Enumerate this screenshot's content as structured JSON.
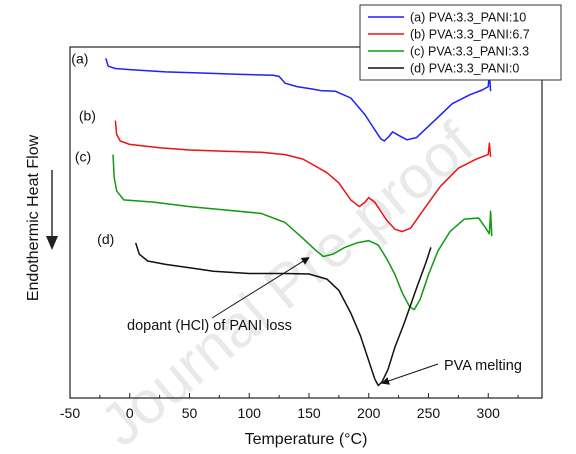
{
  "chart_data": {
    "type": "line",
    "xlabel": "Temperature (°C)",
    "ylabel": "Endothermic Heat Flow",
    "xlim": [
      -50,
      345
    ],
    "x_ticks": [
      "-50",
      "0",
      "50",
      "100",
      "150",
      "200",
      "250",
      "300"
    ],
    "y_ticks_shown": false,
    "legend": {
      "position": "top-right",
      "framed": true
    },
    "watermark": "Journal Pre-proof",
    "series": [
      {
        "name": "(a) PVA:3.3_PANI:10",
        "tag": "(a)",
        "color": "#1f1fff",
        "points": [
          [
            -20,
            0.95
          ],
          [
            -18,
            0.88
          ],
          [
            -12,
            0.86
          ],
          [
            0,
            0.85
          ],
          [
            30,
            0.83
          ],
          [
            60,
            0.82
          ],
          [
            90,
            0.81
          ],
          [
            120,
            0.8
          ],
          [
            125,
            0.79
          ],
          [
            130,
            0.73
          ],
          [
            140,
            0.7
          ],
          [
            152,
            0.68
          ],
          [
            160,
            0.665
          ],
          [
            172,
            0.66
          ],
          [
            185,
            0.6
          ],
          [
            197,
            0.45
          ],
          [
            205,
            0.32
          ],
          [
            210,
            0.24
          ],
          [
            213,
            0.22
          ],
          [
            217,
            0.26
          ],
          [
            220,
            0.3
          ],
          [
            225,
            0.27
          ],
          [
            232,
            0.23
          ],
          [
            240,
            0.25
          ],
          [
            255,
            0.4
          ],
          [
            270,
            0.55
          ],
          [
            285,
            0.63
          ],
          [
            295,
            0.67
          ],
          [
            300,
            0.7
          ],
          [
            301,
            0.82
          ],
          [
            302,
            0.66
          ]
        ]
      },
      {
        "name": "(b) PVA:3.3_PANI:6.7",
        "tag": "(b)",
        "color": "#ee1111",
        "points": [
          [
            -12,
            0.4
          ],
          [
            -11,
            0.28
          ],
          [
            -8,
            0.22
          ],
          [
            0,
            0.19
          ],
          [
            25,
            0.16
          ],
          [
            50,
            0.14
          ],
          [
            80,
            0.13
          ],
          [
            110,
            0.12
          ],
          [
            130,
            0.1
          ],
          [
            145,
            0.06
          ],
          [
            155,
            0.0
          ],
          [
            165,
            -0.06
          ],
          [
            175,
            -0.15
          ],
          [
            185,
            -0.3
          ],
          [
            192,
            -0.36
          ],
          [
            197,
            -0.32
          ],
          [
            200,
            -0.28
          ],
          [
            205,
            -0.32
          ],
          [
            215,
            -0.48
          ],
          [
            222,
            -0.56
          ],
          [
            228,
            -0.58
          ],
          [
            235,
            -0.55
          ],
          [
            245,
            -0.4
          ],
          [
            260,
            -0.18
          ],
          [
            275,
            -0.02
          ],
          [
            290,
            0.06
          ],
          [
            300,
            0.1
          ],
          [
            301,
            0.2
          ],
          [
            302,
            0.08
          ]
        ]
      },
      {
        "name": "(c) PVA:3.3_PANI:3.3",
        "tag": "(c)",
        "color": "#119911",
        "points": [
          [
            -14,
            0.1
          ],
          [
            -13,
            -0.1
          ],
          [
            -11,
            -0.22
          ],
          [
            -5,
            -0.3
          ],
          [
            20,
            -0.32
          ],
          [
            50,
            -0.36
          ],
          [
            80,
            -0.39
          ],
          [
            110,
            -0.42
          ],
          [
            130,
            -0.5
          ],
          [
            145,
            -0.64
          ],
          [
            155,
            -0.74
          ],
          [
            162,
            -0.8
          ],
          [
            170,
            -0.78
          ],
          [
            180,
            -0.72
          ],
          [
            190,
            -0.68
          ],
          [
            200,
            -0.66
          ],
          [
            208,
            -0.7
          ],
          [
            215,
            -0.82
          ],
          [
            222,
            -0.96
          ],
          [
            228,
            -1.12
          ],
          [
            234,
            -1.24
          ],
          [
            238,
            -1.27
          ],
          [
            243,
            -1.18
          ],
          [
            250,
            -0.96
          ],
          [
            258,
            -0.75
          ],
          [
            268,
            -0.58
          ],
          [
            280,
            -0.47
          ],
          [
            292,
            -0.46
          ],
          [
            298,
            -0.55
          ],
          [
            301,
            -0.6
          ],
          [
            302,
            -0.4
          ],
          [
            303,
            -0.62
          ]
        ]
      },
      {
        "name": "(d) PVA:3.3_PANI:0",
        "tag": "(d)",
        "color": "#111111",
        "points": [
          [
            5,
            -0.68
          ],
          [
            8,
            -0.78
          ],
          [
            15,
            -0.84
          ],
          [
            30,
            -0.87
          ],
          [
            50,
            -0.9
          ],
          [
            70,
            -0.93
          ],
          [
            100,
            -0.95
          ],
          [
            130,
            -0.95
          ],
          [
            150,
            -0.955
          ],
          [
            165,
            -1.0
          ],
          [
            175,
            -1.1
          ],
          [
            185,
            -1.3
          ],
          [
            193,
            -1.5
          ],
          [
            200,
            -1.72
          ],
          [
            205,
            -1.88
          ],
          [
            208,
            -1.94
          ],
          [
            211,
            -1.91
          ],
          [
            216,
            -1.8
          ],
          [
            222,
            -1.6
          ],
          [
            230,
            -1.38
          ],
          [
            240,
            -1.08
          ],
          [
            248,
            -0.85
          ],
          [
            252,
            -0.72
          ]
        ]
      }
    ],
    "annotations": [
      {
        "text": "dopant (HCl) of PANI loss",
        "arrow_to": [
          150,
          -0.81
        ]
      },
      {
        "text": "PVA melting",
        "arrow_to": [
          211,
          -1.92
        ]
      }
    ]
  }
}
